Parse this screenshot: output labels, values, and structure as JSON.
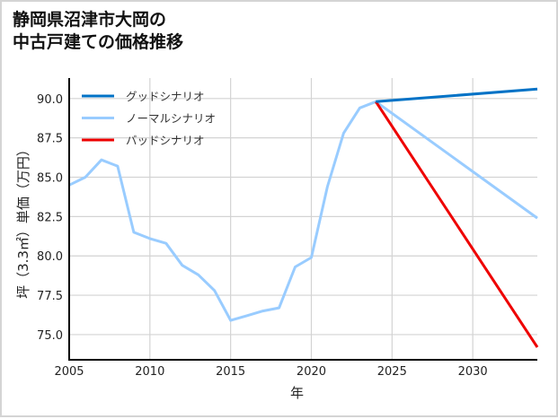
{
  "title": {
    "line1": "静岡県沼津市大岡の",
    "line2": "中古戸建ての価格推移"
  },
  "chart_data": {
    "type": "line",
    "title": "静岡県沼津市大岡の中古戸建ての価格推移",
    "xlabel": "年",
    "ylabel": "坪（3.3㎡）単価（万円）",
    "xlim": [
      2005,
      2034
    ],
    "ylim": [
      73.4,
      91.3
    ],
    "xticks": [
      2005,
      2010,
      2015,
      2020,
      2025,
      2030
    ],
    "xtick_labels": [
      "2005",
      "2010",
      "2015",
      "2020",
      "2025",
      "2030"
    ],
    "yticks": [
      75.0,
      77.5,
      80.0,
      82.5,
      85.0,
      87.5,
      90.0
    ],
    "ytick_labels": [
      "75.0",
      "77.5",
      "80.0",
      "82.5",
      "85.0",
      "87.5",
      "90.0"
    ],
    "grid": true,
    "legend_position": "upper left",
    "series": [
      {
        "name": "グッドシナリオ",
        "color": "#0072c6",
        "x": [
          2024,
          2034
        ],
        "values": [
          89.8,
          90.6
        ]
      },
      {
        "name": "ノーマルシナリオ",
        "color": "#99ccff",
        "x": [
          2005,
          2006,
          2007,
          2008,
          2009,
          2010,
          2011,
          2012,
          2013,
          2014,
          2015,
          2016,
          2017,
          2018,
          2019,
          2020,
          2021,
          2022,
          2023,
          2024,
          2034
        ],
        "values": [
          84.5,
          85.0,
          86.1,
          85.7,
          81.5,
          81.1,
          80.8,
          79.4,
          78.8,
          77.8,
          75.9,
          76.2,
          76.5,
          76.7,
          79.3,
          79.9,
          84.4,
          87.8,
          89.4,
          89.8,
          82.4
        ]
      },
      {
        "name": "バッドシナリオ",
        "color": "#ee0000",
        "x": [
          2024,
          2034
        ],
        "values": [
          89.8,
          74.2
        ]
      }
    ]
  },
  "colors": {
    "grid": "#d3d3d3",
    "axis": "#000000",
    "frame": "#d4d4d4"
  }
}
